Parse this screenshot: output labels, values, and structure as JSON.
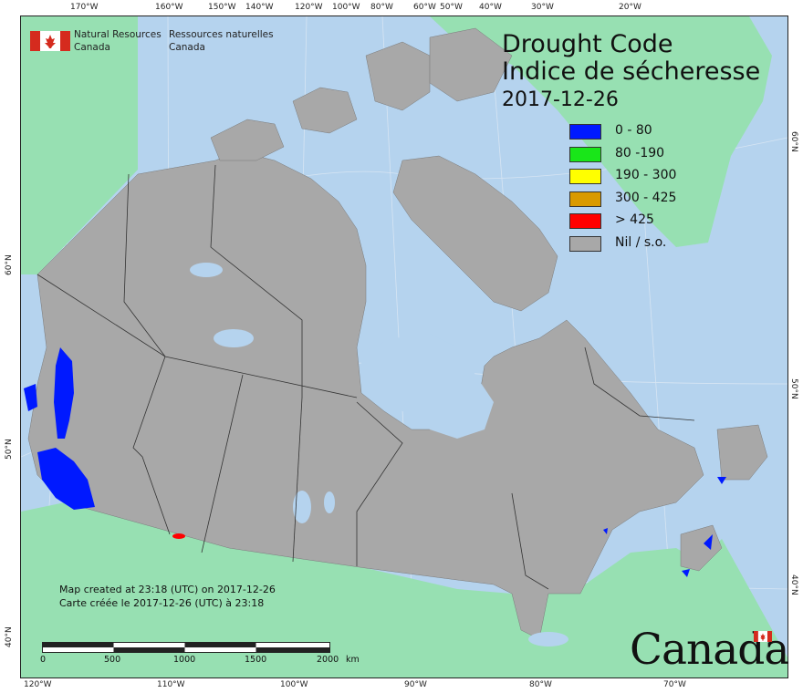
{
  "title": {
    "line1": "Drought Code",
    "line2": "Indice de sécheresse",
    "date": "2017-12-26"
  },
  "agency": {
    "english_line1": "Natural Resources",
    "english_line2": "Canada",
    "french_line1": "Ressources naturelles",
    "french_line2": "Canada"
  },
  "legend": [
    {
      "label": "0 - 80",
      "color": "#0019ff"
    },
    {
      "label": "80 -190",
      "color": "#19e619"
    },
    {
      "label": "190 - 300",
      "color": "#ffff00"
    },
    {
      "label": "300 - 425",
      "color": "#d99a00"
    },
    {
      "label": "> 425",
      "color": "#ff0000"
    },
    {
      "label": "Nil / s.o.",
      "color": "#a8a8a8"
    }
  ],
  "notes": {
    "created_en": "Map created at 23:18 (UTC) on 2017-12-26",
    "created_fr": "Carte créée le 2017-12-26 (UTC) à 23:18"
  },
  "scale": {
    "labels": [
      "0",
      "500",
      "1000",
      "1500",
      "2000"
    ],
    "unit": "km"
  },
  "top_ticks": [
    "170°W",
    "160°W",
    "150°W",
    "140°W",
    "120°W",
    "100°W",
    "80°W",
    "60°W",
    "50°W",
    "40°W",
    "30°W",
    "20°W"
  ],
  "bottom_ticks": [
    "120°W",
    "110°W",
    "100°W",
    "90°W",
    "80°W",
    "70°W"
  ],
  "left_ticks": [
    "60°N",
    "50°N",
    "40°N"
  ],
  "right_ticks": [
    "60°N",
    "50°N",
    "40°N"
  ],
  "wordmark": "Canada",
  "colors": {
    "water": "#b5d3ee",
    "land_other": "#97e0b2",
    "canada_nil": "#a8a8a8",
    "dc_0_80": "#0019ff",
    "dc_gt_425": "#ff0000",
    "flag_red": "#d52b1e"
  }
}
